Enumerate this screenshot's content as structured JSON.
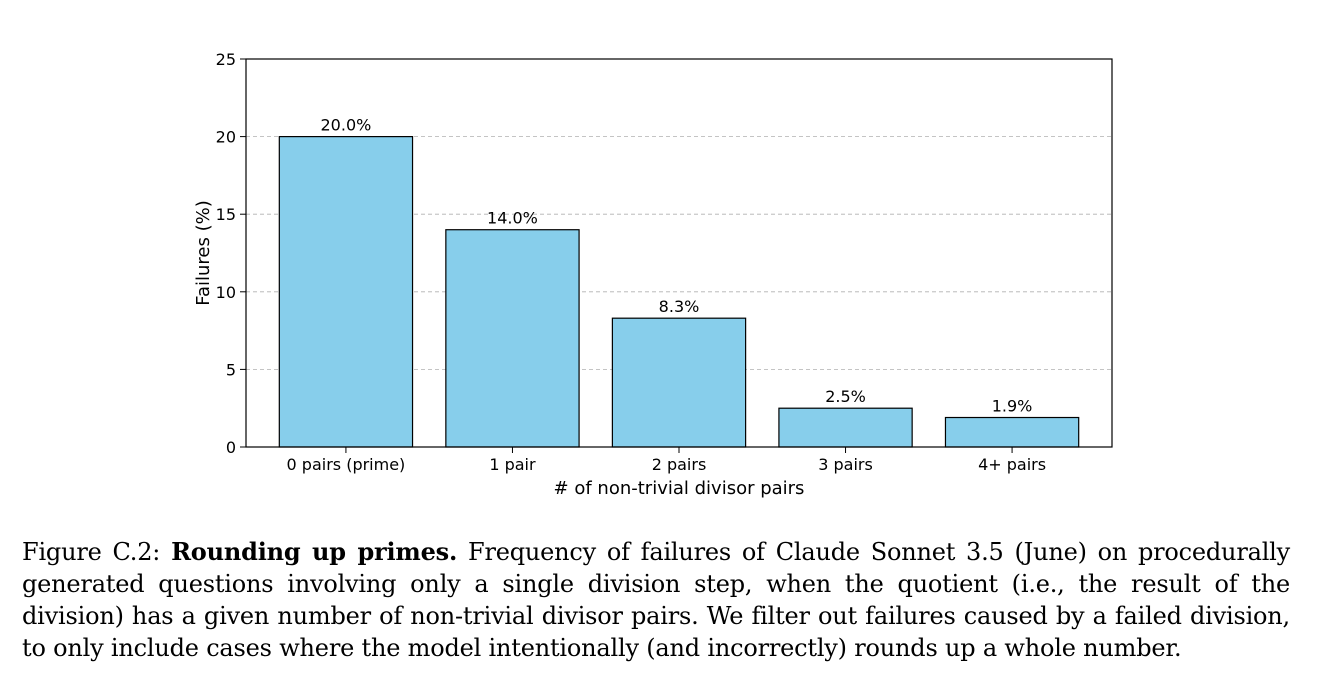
{
  "chart_data": {
    "type": "bar",
    "categories": [
      "0 pairs (prime)",
      "1 pair",
      "2 pairs",
      "3 pairs",
      "4+ pairs"
    ],
    "values": [
      20.0,
      14.0,
      8.3,
      2.5,
      1.9
    ],
    "value_labels": [
      "20.0%",
      "14.0%",
      "8.3%",
      "2.5%",
      "1.9%"
    ],
    "xlabel": "# of non-trivial divisor pairs",
    "ylabel": "Failures (%)",
    "ylim": [
      0,
      25
    ],
    "yticks": [
      0,
      5,
      10,
      15,
      20,
      25
    ],
    "grid": "horizontal dashed",
    "bar_color": "#87ceeb",
    "edge_color": "#000000"
  },
  "caption": {
    "label": "Figure C.2:",
    "title": "Rounding up primes.",
    "text": "Frequency of failures of Claude Sonnet 3.5 (June) on procedurally generated questions involving only a single division step, when the quotient (i.e., the result of the division) has a given number of non-trivial divisor pairs. We filter out failures caused by a failed division, to only include cases where the model intentionally (and incorrectly) rounds up a whole number."
  }
}
